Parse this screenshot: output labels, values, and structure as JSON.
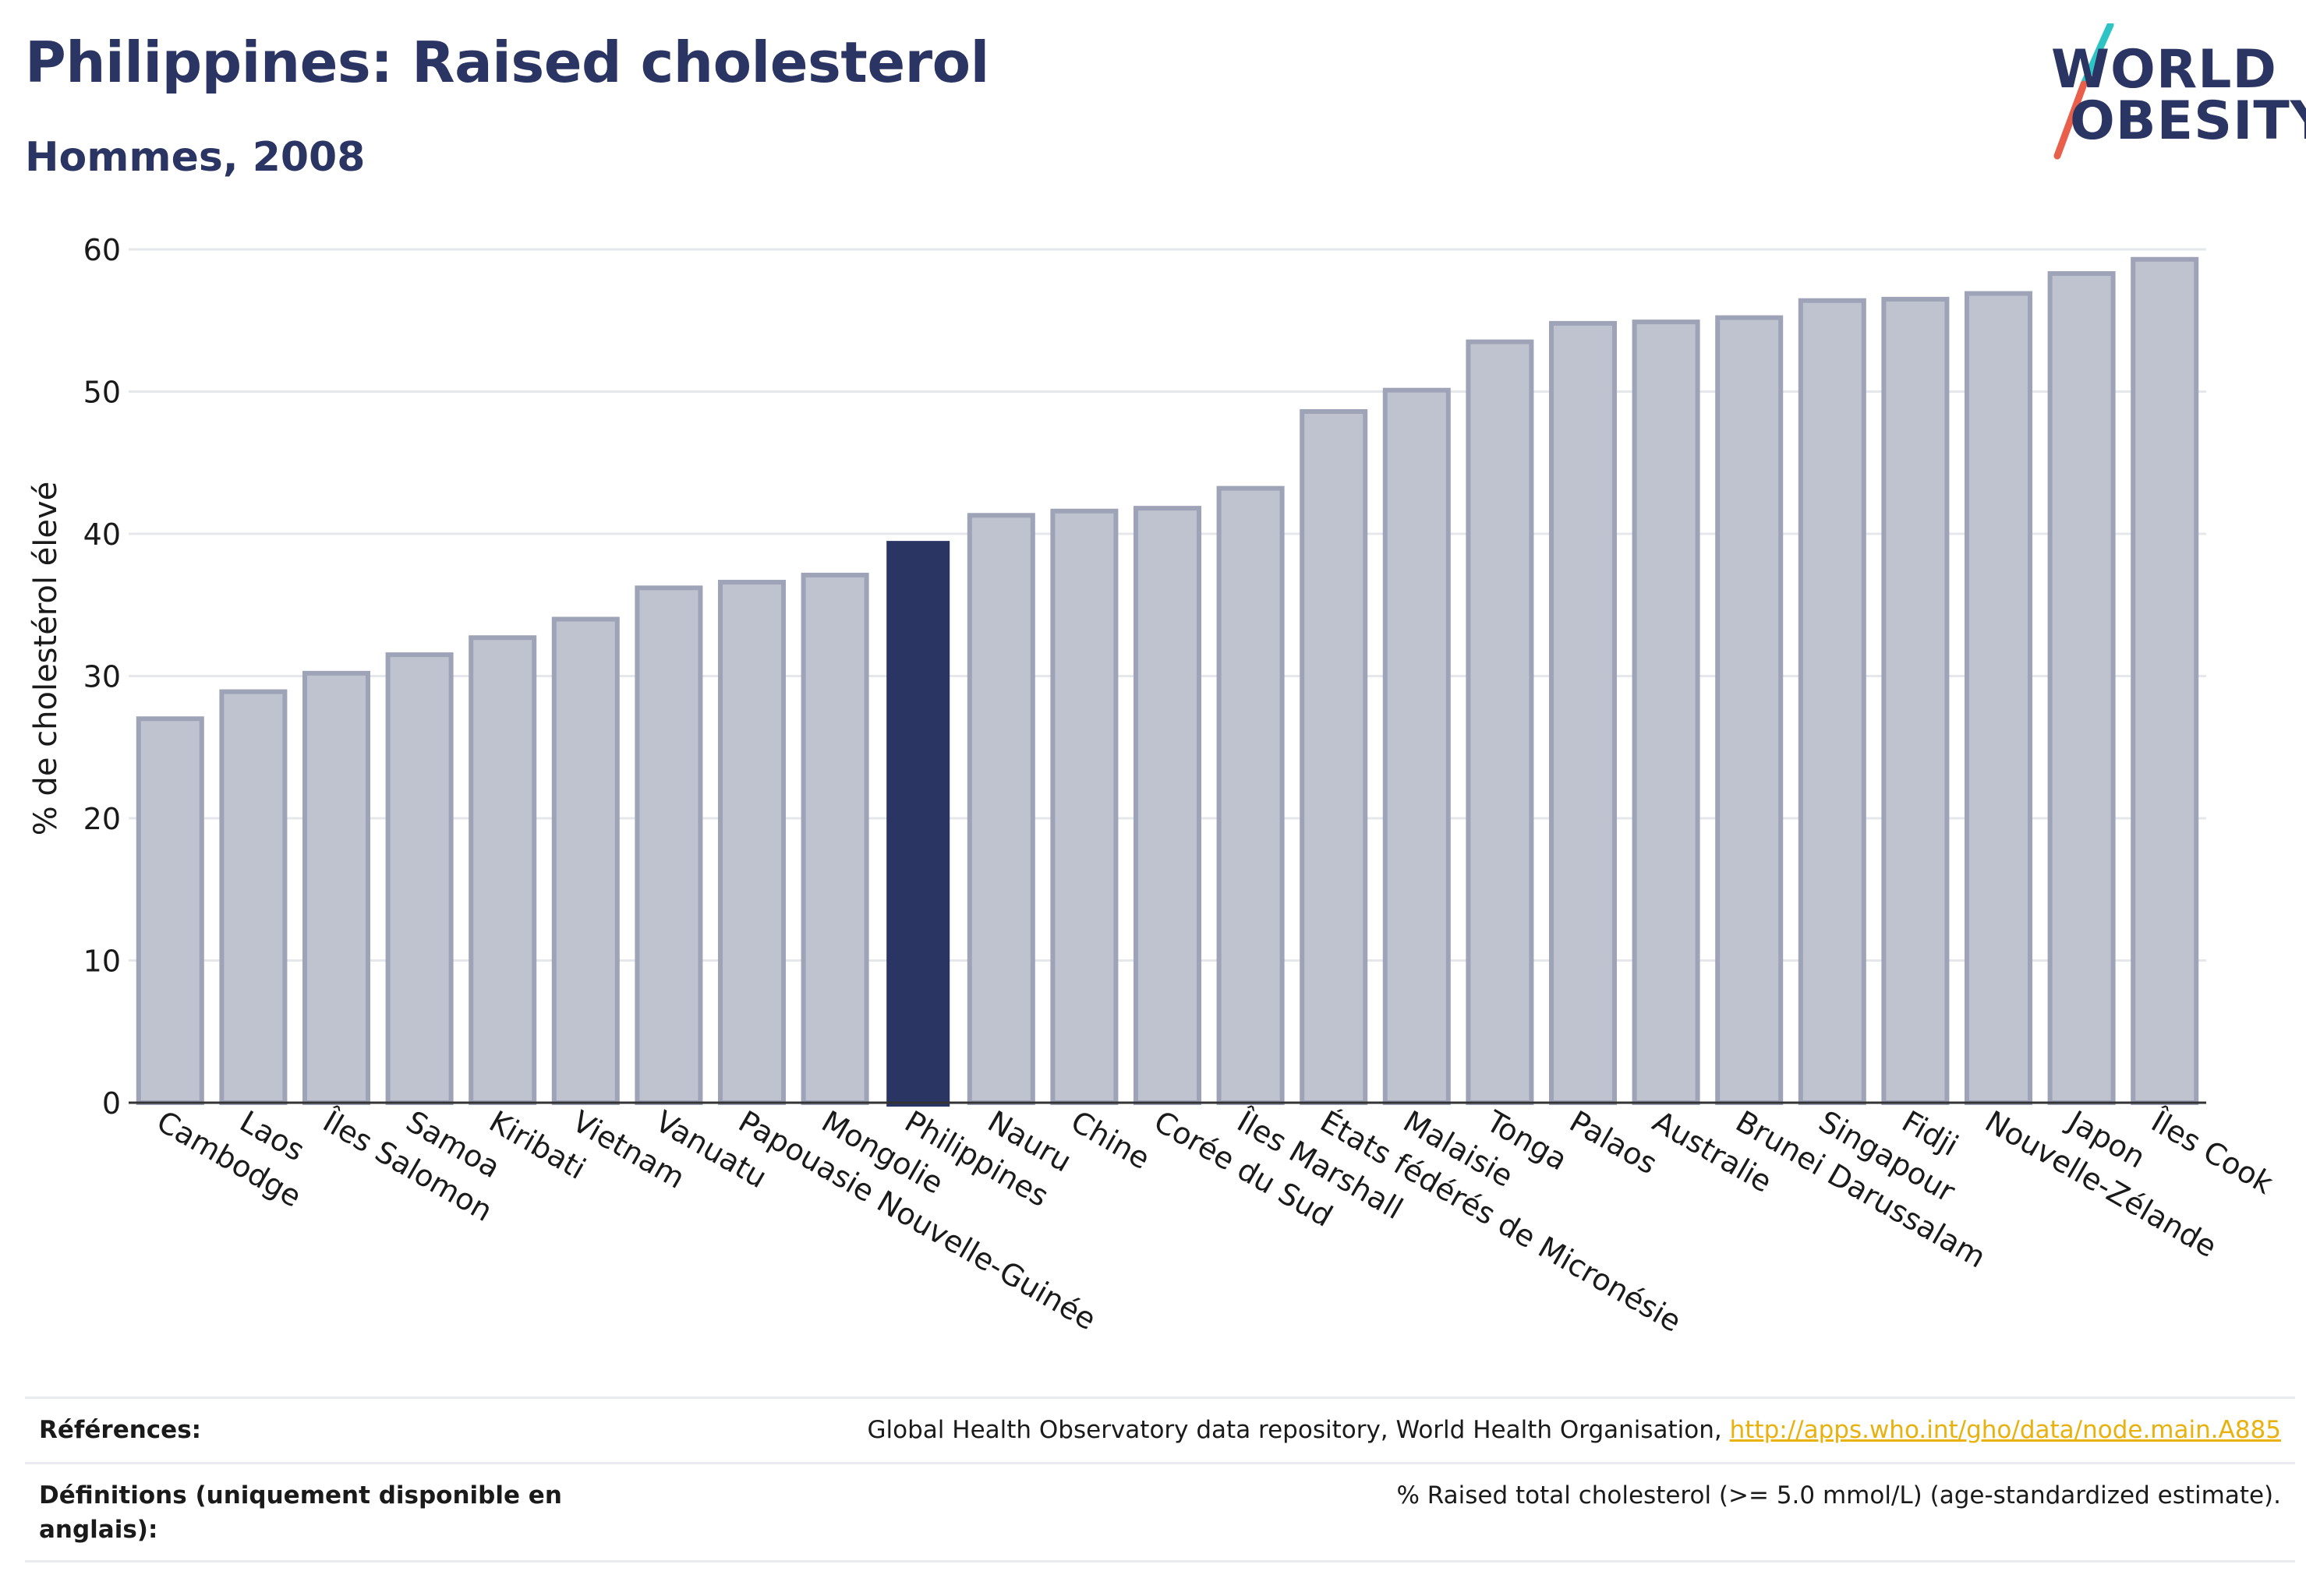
{
  "title": "Philippines: Raised cholesterol",
  "subtitle": "Hommes, 2008",
  "logo": {
    "line1": "WORLD",
    "line2": "OBESITY",
    "slash_colors": [
      "#2ec4c6",
      "#e8604c"
    ]
  },
  "colors": {
    "bar_default": "#bfc2cf",
    "bar_default_stroke": "#9ea3b8",
    "bar_highlight": "#2a3563",
    "text": "#2a3563",
    "grid": "#e6e7eb",
    "link": "#e8b10d"
  },
  "chart_data": {
    "type": "bar",
    "ylabel": "% de cholestérol élevé",
    "ylim": [
      0,
      60
    ],
    "yticks": [
      0,
      10,
      20,
      30,
      40,
      50,
      60
    ],
    "grid": true,
    "highlight": "Philippines",
    "categories": [
      "Cambodge",
      "Laos",
      "Îles Salomon",
      "Samoa",
      "Kiribati",
      "Vietnam",
      "Vanuatu",
      "Papouasie Nouvelle-Guinée",
      "Mongolie",
      "Philippines",
      "Nauru",
      "Chine",
      "Corée du Sud",
      "Îles Marshall",
      "États fédérés de Micronésie",
      "Malaisie",
      "Tonga",
      "Palaos",
      "Australie",
      "Brunei Darussalam",
      "Singapour",
      "Fidji",
      "Nouvelle-Zélande",
      "Japon",
      "Îles Cook"
    ],
    "values": [
      27.0,
      28.9,
      30.2,
      31.5,
      32.7,
      34.0,
      36.2,
      36.6,
      37.1,
      39.5,
      41.3,
      41.6,
      41.8,
      43.2,
      48.6,
      50.1,
      53.5,
      54.8,
      54.9,
      55.2,
      56.4,
      56.5,
      56.9,
      58.3,
      59.3
    ]
  },
  "footer": {
    "references_label": "Références:",
    "references_text": "Global Health Observatory data repository, World Health Organisation,",
    "references_link": "http://apps.who.int/gho/data/node.main.A885",
    "definitions_label": "Définitions (uniquement disponible en anglais):",
    "definitions_text": "% Raised total cholesterol (>= 5.0 mmol/L) (age-standardized estimate)."
  }
}
